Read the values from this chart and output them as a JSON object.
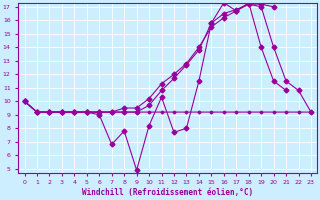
{
  "xlabel": "Windchill (Refroidissement éolien,°C)",
  "color": "#990099",
  "bg_color": "#cceeff",
  "grid_color": "#ffffff",
  "ylim": [
    5,
    17
  ],
  "xlim": [
    -0.5,
    23.5
  ],
  "yticks": [
    5,
    6,
    7,
    8,
    9,
    10,
    11,
    12,
    13,
    14,
    15,
    16,
    17
  ],
  "xticks": [
    0,
    1,
    2,
    3,
    4,
    5,
    6,
    7,
    8,
    9,
    10,
    11,
    12,
    13,
    14,
    15,
    16,
    17,
    18,
    19,
    20,
    21,
    22,
    23
  ],
  "line_flat_x": [
    0,
    1,
    2,
    3,
    4,
    5,
    6,
    7,
    8,
    9,
    10,
    11,
    12,
    13,
    14,
    15,
    16,
    17,
    18,
    19,
    20,
    21,
    22,
    23
  ],
  "line_flat_y": [
    10,
    9.2,
    9.2,
    9.2,
    9.2,
    9.2,
    9.2,
    9.2,
    9.2,
    9.2,
    9.2,
    9.2,
    9.2,
    9.2,
    9.2,
    9.2,
    9.2,
    9.2,
    9.2,
    9.2,
    9.2,
    9.2,
    9.2,
    9.2
  ],
  "line_rise1_x": [
    0,
    1,
    2,
    3,
    4,
    5,
    6,
    7,
    8,
    9,
    10,
    11,
    12,
    13,
    14,
    15,
    16,
    17,
    18,
    19,
    20
  ],
  "line_rise1_y": [
    10,
    9.2,
    9.2,
    9.2,
    9.2,
    9.2,
    9.2,
    9.2,
    9.2,
    9.2,
    9.7,
    10.8,
    11.7,
    12.7,
    13.8,
    15.8,
    16.5,
    16.8,
    17.2,
    17.2,
    17.0
  ],
  "line_rise2_x": [
    0,
    1,
    2,
    3,
    4,
    5,
    6,
    7,
    8,
    9,
    10,
    11,
    12,
    13,
    14,
    15,
    16,
    17,
    18,
    19,
    20,
    21,
    22,
    23
  ],
  "line_rise2_y": [
    10,
    9.2,
    9.2,
    9.2,
    9.2,
    9.2,
    9.2,
    9.2,
    9.5,
    9.5,
    10.2,
    11.3,
    12.0,
    12.8,
    14.0,
    15.5,
    16.2,
    16.7,
    17.2,
    17.0,
    14.0,
    11.5,
    10.8,
    9.2
  ],
  "line_zigzag_x": [
    0,
    1,
    2,
    3,
    4,
    5,
    6,
    7,
    8,
    9,
    10,
    11,
    12,
    13,
    14,
    15,
    16,
    17,
    18,
    19,
    20,
    21
  ],
  "line_zigzag_y": [
    10,
    9.2,
    9.2,
    9.2,
    9.2,
    9.2,
    9.0,
    6.8,
    7.8,
    4.9,
    8.2,
    10.3,
    7.7,
    8.0,
    11.5,
    15.8,
    17.3,
    16.7,
    17.3,
    14.0,
    11.5,
    10.8
  ]
}
